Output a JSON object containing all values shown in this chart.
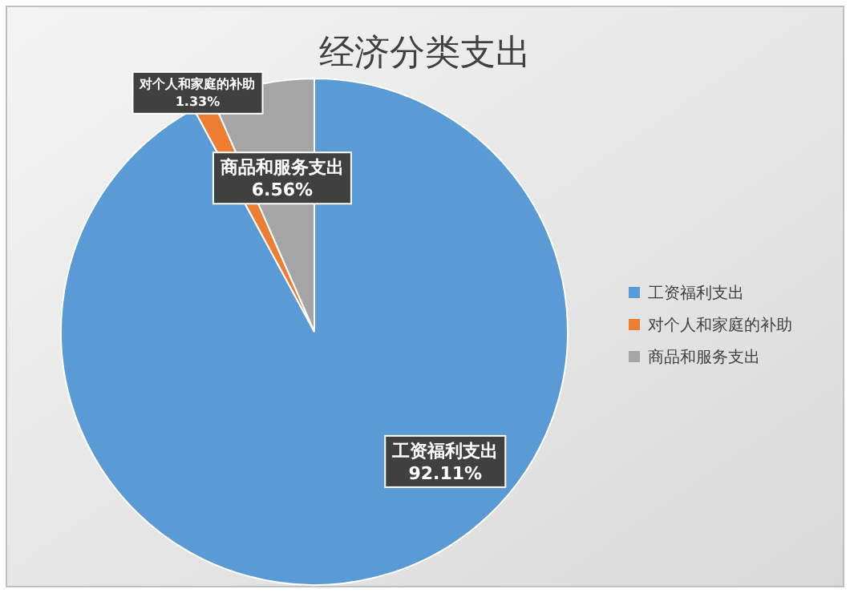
{
  "chart_data": {
    "type": "pie",
    "title": "经济分类支出",
    "categories": [
      "工资福利支出",
      "对个人和家庭的补助",
      "商品和服务支出"
    ],
    "values": [
      92.11,
      1.33,
      6.56
    ],
    "colors": [
      "#5b9bd5",
      "#ed7d31",
      "#a5a5a5"
    ],
    "value_labels": [
      "92.11%",
      "1.33%",
      "6.56%"
    ],
    "legend": "right"
  }
}
